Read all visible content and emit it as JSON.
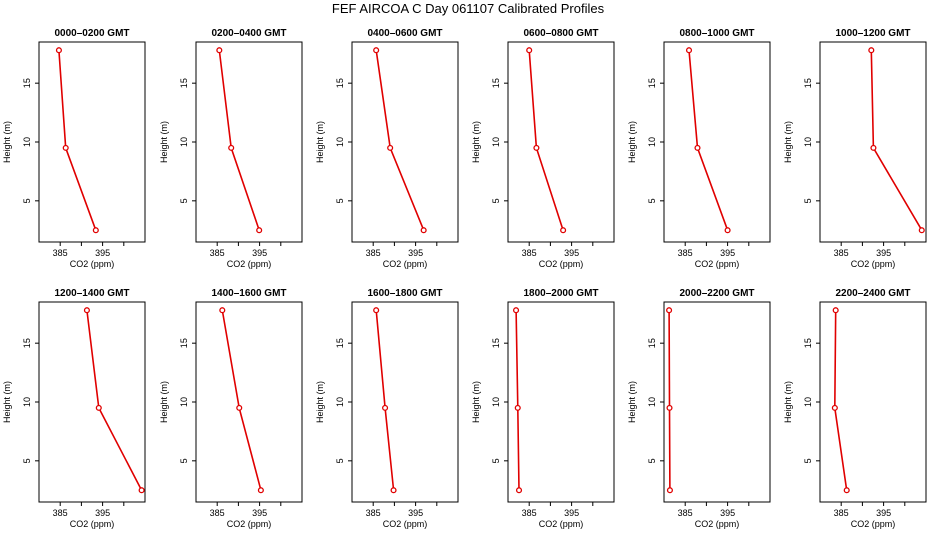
{
  "figure": {
    "title": "FEF  AIRCOA C  Day 061107  Calibrated Profiles"
  },
  "chart_data": [
    {
      "type": "line",
      "title": "0000–0200 GMT",
      "xlabel": "CO2 (ppm)",
      "ylabel": "Height (m)",
      "xlim": [
        380,
        405
      ],
      "ylim": [
        1.5,
        18.5
      ],
      "x_ticks": [
        385,
        390,
        395,
        400
      ],
      "x_tick_labels": [
        "385",
        "",
        "395",
        ""
      ],
      "y_ticks": [
        5,
        10,
        15
      ],
      "series": [
        {
          "color": "#e00000",
          "x": [
            384.7,
            386.3,
            393.4
          ],
          "y": [
            17.8,
            9.5,
            2.5
          ]
        }
      ]
    },
    {
      "type": "line",
      "title": "0200–0400 GMT",
      "xlabel": "CO2 (ppm)",
      "ylabel": "Height (m)",
      "xlim": [
        380,
        405
      ],
      "ylim": [
        1.5,
        18.5
      ],
      "x_ticks": [
        385,
        390,
        395,
        400
      ],
      "x_tick_labels": [
        "385",
        "",
        "395",
        ""
      ],
      "y_ticks": [
        5,
        10,
        15
      ],
      "series": [
        {
          "color": "#e00000",
          "x": [
            385.5,
            388.3,
            394.9
          ],
          "y": [
            17.8,
            9.5,
            2.5
          ]
        }
      ]
    },
    {
      "type": "line",
      "title": "0400–0600 GMT",
      "xlabel": "CO2 (ppm)",
      "ylabel": "Height (m)",
      "xlim": [
        380,
        405
      ],
      "ylim": [
        1.5,
        18.5
      ],
      "x_ticks": [
        385,
        390,
        395,
        400
      ],
      "x_tick_labels": [
        "385",
        "",
        "395",
        ""
      ],
      "y_ticks": [
        5,
        10,
        15
      ],
      "series": [
        {
          "color": "#e00000",
          "x": [
            385.7,
            389.0,
            396.9
          ],
          "y": [
            17.8,
            9.5,
            2.5
          ]
        }
      ]
    },
    {
      "type": "line",
      "title": "0600–0800 GMT",
      "xlabel": "CO2 (ppm)",
      "ylabel": "Height (m)",
      "xlim": [
        380,
        405
      ],
      "ylim": [
        1.5,
        18.5
      ],
      "x_ticks": [
        385,
        390,
        395,
        400
      ],
      "x_tick_labels": [
        "385",
        "",
        "395",
        ""
      ],
      "y_ticks": [
        5,
        10,
        15
      ],
      "series": [
        {
          "color": "#e00000",
          "x": [
            385.0,
            386.7,
            393.0
          ],
          "y": [
            17.8,
            9.5,
            2.5
          ]
        }
      ]
    },
    {
      "type": "line",
      "title": "0800–1000 GMT",
      "xlabel": "CO2 (ppm)",
      "ylabel": "Height (m)",
      "xlim": [
        380,
        405
      ],
      "ylim": [
        1.5,
        18.5
      ],
      "x_ticks": [
        385,
        390,
        395,
        400
      ],
      "x_tick_labels": [
        "385",
        "",
        "395",
        ""
      ],
      "y_ticks": [
        5,
        10,
        15
      ],
      "series": [
        {
          "color": "#e00000",
          "x": [
            385.9,
            387.9,
            395.0
          ],
          "y": [
            17.8,
            9.5,
            2.5
          ]
        }
      ]
    },
    {
      "type": "line",
      "title": "1000–1200 GMT",
      "xlabel": "CO2 (ppm)",
      "ylabel": "Height (m)",
      "xlim": [
        380,
        405
      ],
      "ylim": [
        1.5,
        18.5
      ],
      "x_ticks": [
        385,
        390,
        395,
        400
      ],
      "x_tick_labels": [
        "385",
        "",
        "395",
        ""
      ],
      "y_ticks": [
        5,
        10,
        15
      ],
      "series": [
        {
          "color": "#e00000",
          "x": [
            392.1,
            392.6,
            404.0
          ],
          "y": [
            17.8,
            9.5,
            2.5
          ]
        }
      ]
    },
    {
      "type": "line",
      "title": "1200–1400 GMT",
      "xlabel": "CO2 (ppm)",
      "ylabel": "Height (m)",
      "xlim": [
        380,
        405
      ],
      "ylim": [
        1.5,
        18.5
      ],
      "x_ticks": [
        385,
        390,
        395,
        400
      ],
      "x_tick_labels": [
        "385",
        "",
        "395",
        ""
      ],
      "y_ticks": [
        5,
        10,
        15
      ],
      "series": [
        {
          "color": "#e00000",
          "x": [
            391.3,
            394.1,
            404.2
          ],
          "y": [
            17.8,
            9.5,
            2.5
          ]
        }
      ]
    },
    {
      "type": "line",
      "title": "1400–1600 GMT",
      "xlabel": "CO2 (ppm)",
      "ylabel": "Height (m)",
      "xlim": [
        380,
        405
      ],
      "ylim": [
        1.5,
        18.5
      ],
      "x_ticks": [
        385,
        390,
        395,
        400
      ],
      "x_tick_labels": [
        "385",
        "",
        "395",
        ""
      ],
      "y_ticks": [
        5,
        10,
        15
      ],
      "series": [
        {
          "color": "#e00000",
          "x": [
            386.2,
            390.2,
            395.3
          ],
          "y": [
            17.8,
            9.5,
            2.5
          ]
        }
      ]
    },
    {
      "type": "line",
      "title": "1600–1800 GMT",
      "xlabel": "CO2 (ppm)",
      "ylabel": "Height (m)",
      "xlim": [
        380,
        405
      ],
      "ylim": [
        1.5,
        18.5
      ],
      "x_ticks": [
        385,
        390,
        395,
        400
      ],
      "x_tick_labels": [
        "385",
        "",
        "395",
        ""
      ],
      "y_ticks": [
        5,
        10,
        15
      ],
      "series": [
        {
          "color": "#e00000",
          "x": [
            385.7,
            387.8,
            389.8
          ],
          "y": [
            17.8,
            9.5,
            2.5
          ]
        }
      ]
    },
    {
      "type": "line",
      "title": "1800–2000 GMT",
      "xlabel": "CO2 (ppm)",
      "ylabel": "Height (m)",
      "xlim": [
        380,
        405
      ],
      "ylim": [
        1.5,
        18.5
      ],
      "x_ticks": [
        385,
        390,
        395,
        400
      ],
      "x_tick_labels": [
        "385",
        "",
        "395",
        ""
      ],
      "y_ticks": [
        5,
        10,
        15
      ],
      "series": [
        {
          "color": "#e00000",
          "x": [
            381.9,
            382.3,
            382.6
          ],
          "y": [
            17.8,
            9.5,
            2.5
          ]
        }
      ]
    },
    {
      "type": "line",
      "title": "2000–2200 GMT",
      "xlabel": "CO2 (ppm)",
      "ylabel": "Height (m)",
      "xlim": [
        380,
        405
      ],
      "ylim": [
        1.5,
        18.5
      ],
      "x_ticks": [
        385,
        390,
        395,
        400
      ],
      "x_tick_labels": [
        "385",
        "",
        "395",
        ""
      ],
      "y_ticks": [
        5,
        10,
        15
      ],
      "series": [
        {
          "color": "#e00000",
          "x": [
            381.2,
            381.3,
            381.4
          ],
          "y": [
            17.8,
            9.5,
            2.5
          ]
        }
      ]
    },
    {
      "type": "line",
      "title": "2200–2400 GMT",
      "xlabel": "CO2 (ppm)",
      "ylabel": "Height (m)",
      "xlim": [
        380,
        405
      ],
      "ylim": [
        1.5,
        18.5
      ],
      "x_ticks": [
        385,
        390,
        395,
        400
      ],
      "x_tick_labels": [
        "385",
        "",
        "395",
        ""
      ],
      "y_ticks": [
        5,
        10,
        15
      ],
      "series": [
        {
          "color": "#e00000",
          "x": [
            383.7,
            383.5,
            386.3
          ],
          "y": [
            17.8,
            9.5,
            2.5
          ]
        }
      ]
    }
  ]
}
